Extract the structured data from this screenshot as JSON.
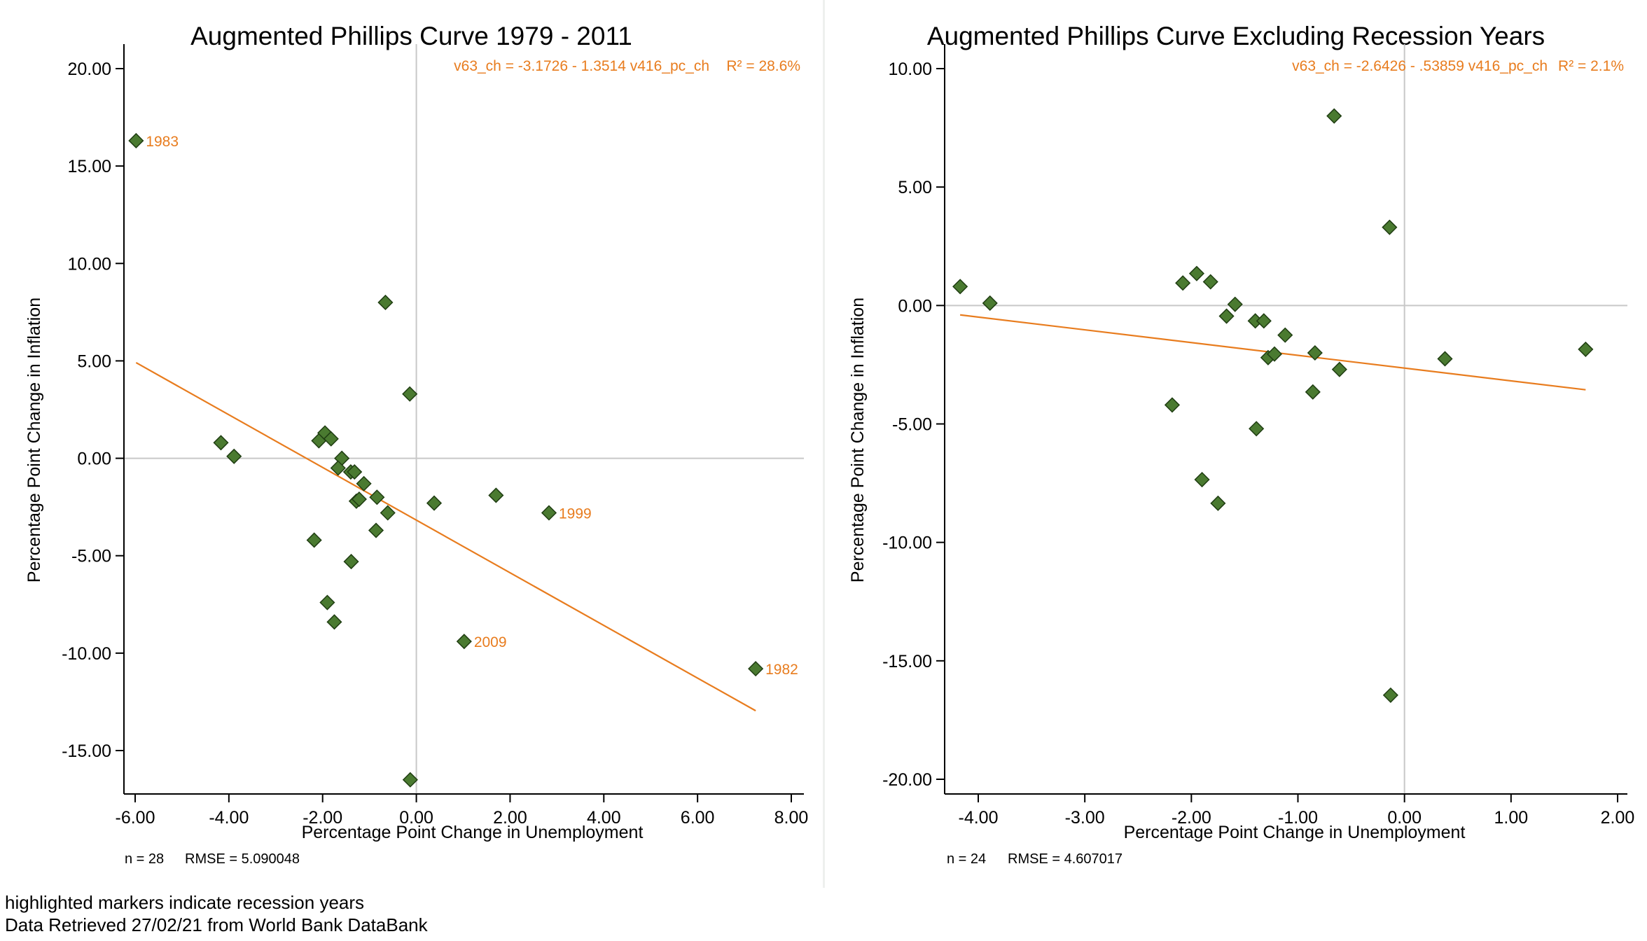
{
  "chart_data": [
    {
      "type": "scatter",
      "title": "Augmented Phillips Curve 1979 - 2011",
      "xlabel": "Percentage Point Change in Unemployment",
      "ylabel": "Percentage Point Change in Inflation",
      "xlim": [
        -6.0,
        8.0
      ],
      "ylim": [
        -15.0,
        20.0
      ],
      "xticks": [
        "-6.00",
        "-4.00",
        "-2.00",
        "0.00",
        "2.00",
        "4.00",
        "6.00",
        "8.00"
      ],
      "yticks": [
        "20.00",
        "15.00",
        "10.00",
        "5.00",
        "0.00",
        "-5.00",
        "-10.00",
        "-15.00"
      ],
      "regression_label": "v63_ch = -3.1726 - 1.3514 v416_pc_ch",
      "r2_label": "R² = 28.6%",
      "fit_line": {
        "intercept": -3.1726,
        "slope": -1.3514,
        "x_range": [
          -5.98,
          7.24
        ]
      },
      "n_label": "n = 28",
      "rmse_label": "RMSE =  5.090048",
      "marker_color": "#4a7a30",
      "line_color": "#e87c1e",
      "points": [
        {
          "x": -5.98,
          "y": 16.3,
          "label": "1983"
        },
        {
          "x": 7.24,
          "y": -10.8,
          "label": "1982"
        },
        {
          "x": 2.83,
          "y": -2.8,
          "label": "1999"
        },
        {
          "x": 1.02,
          "y": -9.4,
          "label": "2009"
        },
        {
          "x": -4.17,
          "y": 0.8
        },
        {
          "x": -3.89,
          "y": 0.1
        },
        {
          "x": -0.66,
          "y": 8.0
        },
        {
          "x": -0.14,
          "y": 3.3
        },
        {
          "x": -2.08,
          "y": 0.9
        },
        {
          "x": -1.95,
          "y": 1.3
        },
        {
          "x": -1.82,
          "y": 1.0
        },
        {
          "x": -1.59,
          "y": 0.0
        },
        {
          "x": -1.67,
          "y": -0.5
        },
        {
          "x": -1.4,
          "y": -0.7
        },
        {
          "x": -1.32,
          "y": -0.7
        },
        {
          "x": -1.12,
          "y": -1.3
        },
        {
          "x": -0.84,
          "y": -2.0
        },
        {
          "x": -1.28,
          "y": -2.2
        },
        {
          "x": -1.22,
          "y": -2.1
        },
        {
          "x": -0.61,
          "y": -2.8
        },
        {
          "x": 0.38,
          "y": -2.3
        },
        {
          "x": 1.7,
          "y": -1.9
        },
        {
          "x": -0.86,
          "y": -3.7
        },
        {
          "x": -2.18,
          "y": -4.2
        },
        {
          "x": -1.39,
          "y": -5.3
        },
        {
          "x": -1.9,
          "y": -7.4
        },
        {
          "x": -1.75,
          "y": -8.4
        },
        {
          "x": -0.13,
          "y": -16.5
        }
      ]
    },
    {
      "type": "scatter",
      "title": "Augmented Phillips Curve Excluding Recession Years",
      "xlabel": "Percentage Point Change in Unemployment",
      "ylabel": "Percentage Point Change in Inflation",
      "xlim": [
        -4.0,
        2.0
      ],
      "ylim": [
        -20.0,
        10.0
      ],
      "xticks": [
        "-4.00",
        "-3.00",
        "-2.00",
        "-1.00",
        "0.00",
        "1.00",
        "2.00"
      ],
      "yticks": [
        "10.00",
        "5.00",
        "0.00",
        "-5.00",
        "-10.00",
        "-15.00",
        "-20.00"
      ],
      "regression_label": "v63_ch = -2.6426 - .53859 v416_pc_ch",
      "r2_label": "R² = 2.1%",
      "fit_line": {
        "intercept": -2.6426,
        "slope": -0.53859,
        "x_range": [
          -4.17,
          1.7
        ]
      },
      "n_label": "n = 24",
      "rmse_label": "RMSE =  4.607017",
      "marker_color": "#4a7a30",
      "line_color": "#e87c1e",
      "points": [
        {
          "x": -4.17,
          "y": 0.8
        },
        {
          "x": -3.89,
          "y": 0.1
        },
        {
          "x": -0.66,
          "y": 8.0
        },
        {
          "x": -0.14,
          "y": 3.3
        },
        {
          "x": -2.08,
          "y": 0.95
        },
        {
          "x": -1.95,
          "y": 1.35
        },
        {
          "x": -1.82,
          "y": 1.0
        },
        {
          "x": -1.59,
          "y": 0.05
        },
        {
          "x": -1.67,
          "y": -0.45
        },
        {
          "x": -1.4,
          "y": -0.65
        },
        {
          "x": -1.32,
          "y": -0.65
        },
        {
          "x": -1.12,
          "y": -1.25
        },
        {
          "x": -0.84,
          "y": -2.0
        },
        {
          "x": -1.28,
          "y": -2.2
        },
        {
          "x": -1.22,
          "y": -2.05
        },
        {
          "x": -0.61,
          "y": -2.7
        },
        {
          "x": 0.38,
          "y": -2.25
        },
        {
          "x": 1.7,
          "y": -1.85
        },
        {
          "x": -0.86,
          "y": -3.65
        },
        {
          "x": -2.18,
          "y": -4.2
        },
        {
          "x": -1.39,
          "y": -5.2
        },
        {
          "x": -1.9,
          "y": -7.35
        },
        {
          "x": -1.75,
          "y": -8.35
        },
        {
          "x": -0.13,
          "y": -16.45
        }
      ]
    }
  ],
  "footer": {
    "line1": "highlighted markers indicate recession years",
    "line2": "Data Retrieved 27/02/21 from World Bank DataBank"
  }
}
